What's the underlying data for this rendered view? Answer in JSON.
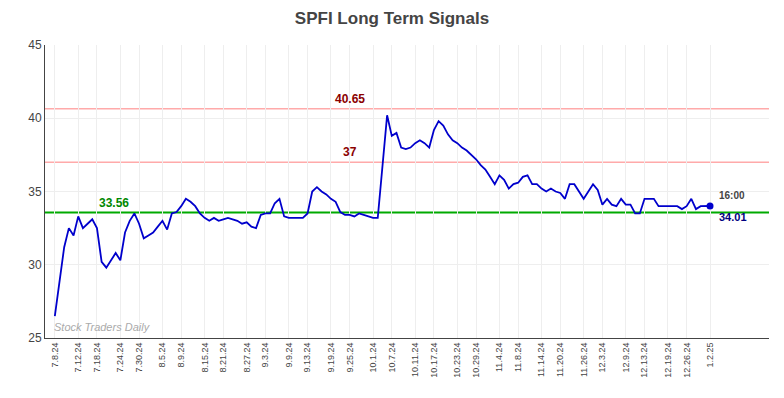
{
  "chart_data": {
    "type": "line",
    "title": "SPFI Long Term Signals",
    "color": "#0000CC",
    "grid": true,
    "ylim": [
      25,
      45
    ],
    "yticks": [
      25,
      30,
      35,
      40,
      45
    ],
    "categories": [
      "7.8.24",
      null,
      null,
      null,
      null,
      "7.12.24",
      null,
      null,
      null,
      "7.18.24",
      null,
      null,
      null,
      null,
      "7.24.24",
      null,
      null,
      null,
      "7.30.24",
      null,
      null,
      null,
      null,
      "8.5.24",
      null,
      null,
      null,
      "8.9.24",
      null,
      null,
      null,
      null,
      "8.15.24",
      null,
      null,
      null,
      "8.21.24",
      null,
      null,
      null,
      null,
      "8.27.24",
      null,
      null,
      null,
      "9.3.24",
      null,
      null,
      null,
      null,
      "9.9.24",
      null,
      null,
      null,
      "9.13.24",
      null,
      null,
      null,
      null,
      "9.19.24",
      null,
      null,
      null,
      "9.25.24",
      null,
      null,
      null,
      null,
      "10.1.24",
      null,
      null,
      null,
      "10.7.24",
      null,
      null,
      null,
      null,
      "10.11.24",
      null,
      null,
      null,
      "10.17.24",
      null,
      null,
      null,
      null,
      "10.23.24",
      null,
      null,
      null,
      "10.29.24",
      null,
      null,
      null,
      null,
      "11.4.24",
      null,
      null,
      null,
      "11.8.24",
      null,
      null,
      null,
      null,
      "11.14.24",
      null,
      null,
      null,
      "11.20.24",
      null,
      null,
      null,
      null,
      "11.26.24",
      null,
      null,
      null,
      "12.3.24",
      null,
      null,
      null,
      null,
      "12.9.24",
      null,
      null,
      null,
      "12.13.24",
      null,
      null,
      null,
      null,
      "12.19.24",
      null,
      null,
      null,
      "12.26.24",
      null,
      null,
      null,
      null,
      "1.2.25"
    ],
    "values": [
      26.5,
      28.8,
      31.2,
      32.5,
      32.0,
      33.3,
      32.5,
      32.8,
      33.1,
      32.5,
      30.2,
      29.8,
      30.3,
      30.8,
      30.3,
      32.2,
      33.0,
      33.5,
      32.8,
      31.8,
      32.0,
      32.2,
      32.6,
      33.0,
      32.4,
      33.5,
      33.6,
      34.0,
      34.5,
      34.3,
      34.0,
      33.5,
      33.2,
      33.0,
      33.2,
      33.0,
      33.1,
      33.2,
      33.1,
      33.0,
      32.8,
      32.9,
      32.6,
      32.5,
      33.4,
      33.5,
      33.5,
      34.2,
      34.5,
      33.3,
      33.2,
      33.2,
      33.2,
      33.2,
      33.5,
      35.0,
      35.3,
      35.0,
      34.8,
      34.5,
      34.3,
      33.6,
      33.4,
      33.4,
      33.3,
      33.5,
      33.4,
      33.3,
      33.2,
      33.2,
      36.5,
      40.2,
      38.8,
      39.0,
      38.0,
      37.9,
      38.0,
      38.3,
      38.5,
      38.3,
      38.0,
      39.2,
      39.8,
      39.5,
      38.9,
      38.5,
      38.3,
      38.0,
      37.8,
      37.5,
      37.2,
      36.8,
      36.5,
      36.0,
      35.5,
      36.1,
      35.8,
      35.2,
      35.5,
      35.6,
      36.0,
      36.1,
      35.5,
      35.5,
      35.2,
      35.0,
      35.2,
      35.0,
      34.9,
      34.5,
      35.5,
      35.5,
      35.0,
      34.5,
      35.0,
      35.5,
      35.1,
      34.1,
      34.5,
      34.1,
      34.0,
      34.5,
      34.1,
      34.1,
      33.5,
      33.5,
      34.5,
      34.5,
      34.5,
      34.0,
      34.0,
      34.0,
      34.0,
      34.0,
      33.8,
      34.0,
      34.5,
      33.8,
      34.0,
      34.0,
      34.01
    ],
    "reference_lines": [
      {
        "value": 40.65,
        "color": "#ffaaaa",
        "label": "40.65",
        "label_color": "#8B0000"
      },
      {
        "value": 37.0,
        "color": "#ffaaaa",
        "label": "37",
        "label_color": "#8B0000"
      },
      {
        "value": 33.56,
        "color": "#00aa00",
        "label": "33.56",
        "label_color": "#008800"
      }
    ],
    "end_labels": [
      {
        "text": "16:00"
      },
      {
        "text": "34.01",
        "color": "#000080"
      }
    ],
    "watermark": {
      "text": "Stock Traders Daily",
      "color": "#aaaaaa"
    }
  }
}
